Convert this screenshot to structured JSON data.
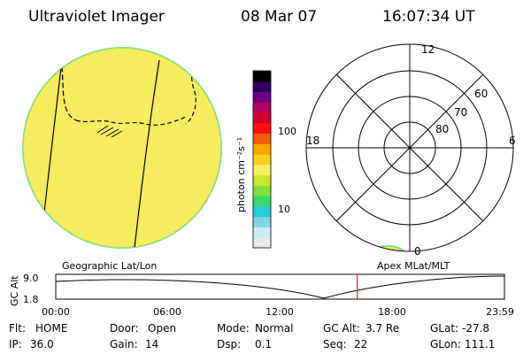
{
  "header": {
    "title": "Ultraviolet Imager",
    "date": "08 Mar 07",
    "time": "16:07:34 UT"
  },
  "colorbar": {
    "unit_label": "photon cm⁻²s⁻¹",
    "tick_100": "100",
    "tick_10": "10",
    "colors": [
      "#e8e8e8",
      "#cfe9f2",
      "#7fd6e8",
      "#2ec9d8",
      "#38d86e",
      "#7fe040",
      "#c8e830",
      "#f6f060",
      "#f8d020",
      "#ffa500",
      "#f06000",
      "#ff1010",
      "#d00030",
      "#b00060",
      "#700080",
      "#300060",
      "#000000"
    ]
  },
  "polar": {
    "label_12": "12",
    "label_6": "6",
    "label_18": "18",
    "label_0": "0",
    "label_60": "60",
    "label_70": "70",
    "label_80": "80"
  },
  "timeline": {
    "left_title": "Geographic Lat/Lon",
    "right_title": "Apex MLat/MLT",
    "axis_label": "GC Alt",
    "y_max": "9.0",
    "y_min": "1.8",
    "ticks": [
      "00:00",
      "06:00",
      "12:00",
      "18:00",
      "23:59"
    ],
    "current_time_fraction": 0.672
  },
  "status": {
    "row1": [
      {
        "label": "Flt:",
        "value": "HOME"
      },
      {
        "label": "Door:",
        "value": "Open"
      },
      {
        "label": "Mode:",
        "value": "Normal"
      },
      {
        "label": "GC Alt:",
        "value": "3.7 Re"
      },
      {
        "label": "GLat:",
        "value": "-27.8"
      }
    ],
    "row2": [
      {
        "label": "IP:",
        "value": "36.0"
      },
      {
        "label": "Gain:",
        "value": "14"
      },
      {
        "label": "Dsp:",
        "value": "0.1"
      },
      {
        "label": "Seq:",
        "value": "22"
      },
      {
        "label": "GLon:",
        "value": "111.1"
      }
    ]
  }
}
